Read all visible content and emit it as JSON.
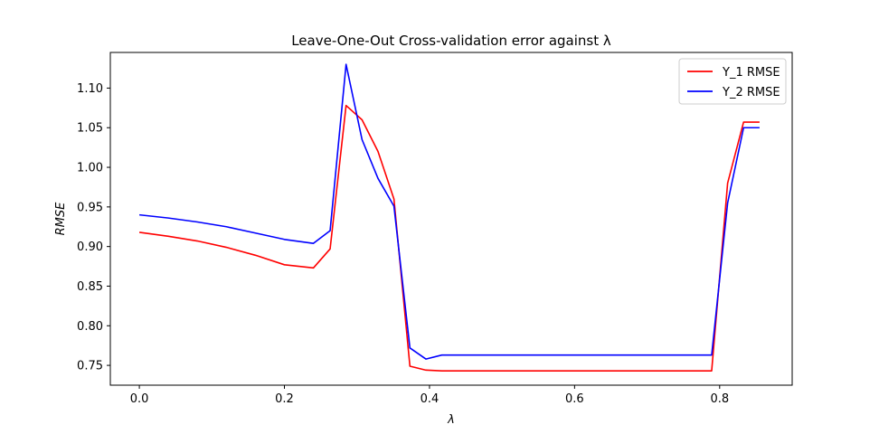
{
  "chart_data": {
    "type": "line",
    "title": "Leave-One-Out Cross-validation error against λ",
    "xlabel": "λ",
    "ylabel": "RMSE",
    "xlim": [
      -0.04,
      0.9
    ],
    "ylim": [
      0.725,
      1.145
    ],
    "xticks": [
      0.0,
      0.2,
      0.4,
      0.6,
      0.8
    ],
    "xtick_labels": [
      "0.0",
      "0.2",
      "0.4",
      "0.6",
      "0.8"
    ],
    "yticks": [
      0.75,
      0.8,
      0.85,
      0.9,
      0.95,
      1.0,
      1.05,
      1.1
    ],
    "ytick_labels": [
      "0.75",
      "0.80",
      "0.85",
      "0.90",
      "0.95",
      "1.00",
      "1.05",
      "1.10"
    ],
    "grid": false,
    "legend_position": "top-right",
    "series": [
      {
        "name": "Y_1 RMSE",
        "color": "#ff0000",
        "x": [
          0.0,
          0.04,
          0.08,
          0.12,
          0.16,
          0.2,
          0.24,
          0.263,
          0.285,
          0.307,
          0.329,
          0.351,
          0.373,
          0.395,
          0.417,
          0.5,
          0.6,
          0.7,
          0.789,
          0.811,
          0.833,
          0.855
        ],
        "y": [
          0.918,
          0.913,
          0.907,
          0.899,
          0.889,
          0.877,
          0.873,
          0.897,
          1.078,
          1.06,
          1.02,
          0.96,
          0.749,
          0.744,
          0.743,
          0.743,
          0.743,
          0.743,
          0.743,
          0.98,
          1.057,
          1.057
        ]
      },
      {
        "name": "Y_2 RMSE",
        "color": "#0000ff",
        "x": [
          0.0,
          0.04,
          0.08,
          0.12,
          0.16,
          0.2,
          0.24,
          0.263,
          0.285,
          0.307,
          0.329,
          0.351,
          0.373,
          0.395,
          0.417,
          0.5,
          0.6,
          0.7,
          0.789,
          0.811,
          0.833,
          0.855
        ],
        "y": [
          0.94,
          0.936,
          0.931,
          0.925,
          0.917,
          0.909,
          0.904,
          0.92,
          1.13,
          1.035,
          0.986,
          0.951,
          0.772,
          0.758,
          0.763,
          0.763,
          0.763,
          0.763,
          0.763,
          0.955,
          1.05,
          1.05
        ]
      }
    ]
  }
}
